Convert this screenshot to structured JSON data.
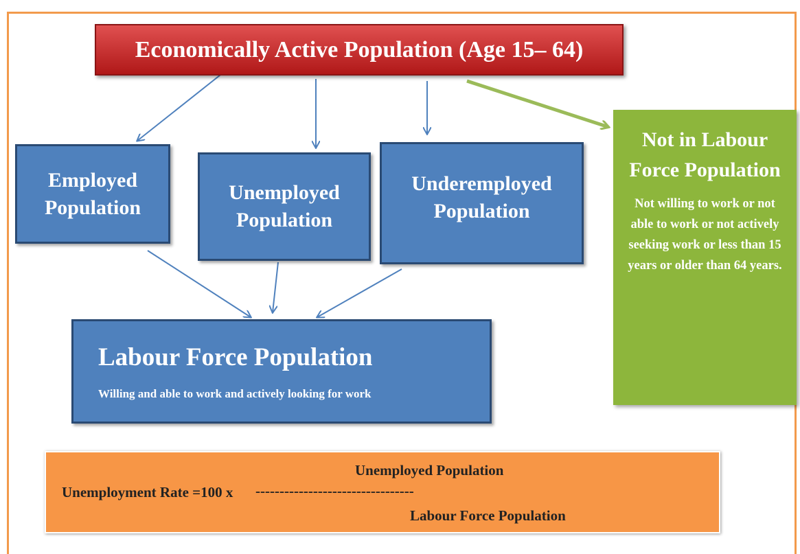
{
  "title": "Economically Active Population (Age 15– 64)",
  "nodes": [
    {
      "label": "Employed Population"
    },
    {
      "label": "Unemployed Population"
    },
    {
      "label": "Underemployed Population"
    },
    {
      "label": "Labour Force Population",
      "description": "Willing and able to work and actively looking for work"
    },
    {
      "label": "Not in Labour Force Population",
      "description": "Not willing to work or not able to work or not actively seeking work or less than 15 years or older than 64 years."
    }
  ],
  "formula": {
    "lhs": "Unemployment Rate =100 x",
    "numerator": "Unemployed Population",
    "divider": "---------------------------------",
    "denominator": "Labour Force Population"
  }
}
